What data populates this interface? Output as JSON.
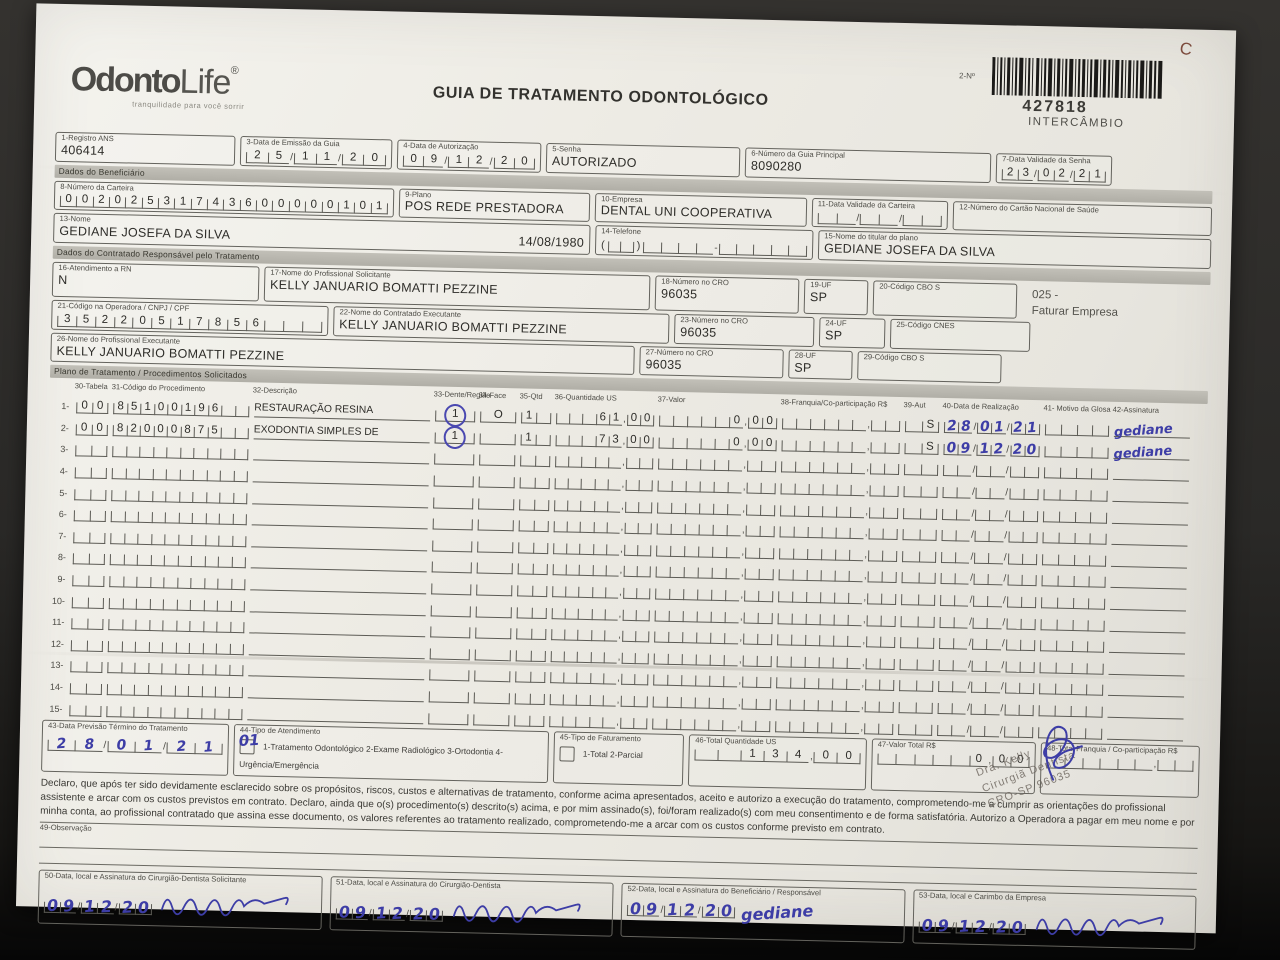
{
  "meta": {
    "corner_mark": "C"
  },
  "brand": {
    "name_bold": "Odonto",
    "name_light": "Life",
    "reg_mark": "®",
    "tagline": "tranquilidade para você sorrir"
  },
  "title": "GUIA DE TRATAMENTO ODONTOLÓGICO",
  "guide_number": {
    "label": "2-Nº",
    "number": "427818",
    "sub": "INTERCÂMBIO"
  },
  "top_fields": {
    "registro_ans": {
      "label": "1-Registro ANS",
      "value": "406414"
    },
    "data_emissao": {
      "label": "3-Data de Emissão da Guia",
      "value": "25/11/20"
    },
    "data_autorizacao": {
      "label": "4-Data de Autorização",
      "value": "09/12/20"
    },
    "senha": {
      "label": "5-Senha",
      "value": "AUTORIZADO"
    },
    "numero_guia_principal": {
      "label": "6-Número da Guia Principal",
      "value": "8090280"
    },
    "data_validade_senha": {
      "label": "7-Data Validade da Senha",
      "value": "23/02/21"
    }
  },
  "beneficiario": {
    "section_title": "Dados do Beneficiário",
    "numero_carteira": {
      "label": "8-Número da Carteira",
      "value": "00202531743600000101"
    },
    "plano": {
      "label": "9-Plano",
      "value": "POS REDE PRESTADORA"
    },
    "empresa": {
      "label": "10-Empresa",
      "value": "DENTAL UNI  COOPERATIVA"
    },
    "data_validade_carteira": {
      "label": "11-Data Validade da Carteira",
      "value": ""
    },
    "cartao_nacional_saude": {
      "label": "12-Número do Cartão Nacional de Saúde",
      "value": ""
    },
    "nome": {
      "label": "13-Nome",
      "value": "GEDIANE JOSEFA DA SILVA",
      "nascimento": "14/08/1980"
    },
    "telefone": {
      "label": "14-Telefone",
      "ddd": "",
      "numero": ""
    },
    "titular": {
      "label": "15-Nome do titular do plano",
      "value": "GEDIANE JOSEFA DA SILVA"
    }
  },
  "contratado": {
    "section_title": "Dados do Contratado Responsável pelo Tratamento",
    "atendimento_rn": {
      "label": "16-Atendimento a RN",
      "value": "N"
    },
    "prof_solicitante": {
      "label": "17-Nome do Profissional Solicitante",
      "value": "KELLY JANUARIO BOMATTI PEZZINE"
    },
    "cro_solicitante": {
      "label": "18-Número no CRO",
      "value": "96035"
    },
    "uf_solicitante": {
      "label": "19-UF",
      "value": "SP"
    },
    "cbo_solicitante": {
      "label": "20-Código CBO S",
      "value": ""
    },
    "faturar_codigo": "025 -",
    "faturar_texto": "Faturar Empresa",
    "codigo_operadora": {
      "label": "21-Código na Operadora / CNPJ / CPF",
      "value": "35220517856"
    },
    "contratado_executante": {
      "label": "22-Nome do Contratado Executante",
      "value": "KELLY JANUARIO BOMATTI PEZZINE"
    },
    "cro_executante": {
      "label": "23-Número no CRO",
      "value": "96035"
    },
    "uf_executante": {
      "label": "24-UF",
      "value": "SP"
    },
    "cnes": {
      "label": "25-Código CNES",
      "value": ""
    },
    "prof_executante": {
      "label": "26-Nome do Profissional Executante",
      "value": "KELLY JANUARIO BOMATTI PEZZINE"
    },
    "cro_prof_executante": {
      "label": "27-Número no CRO",
      "value": "96035"
    },
    "uf_prof_executante": {
      "label": "28-UF",
      "value": "SP"
    },
    "cbo_executante": {
      "label": "29-Código CBO S",
      "value": ""
    }
  },
  "procedimentos": {
    "section_title": "Plano de Tratamento / Procedimentos Solicitados",
    "headers": {
      "tabela": "30-Tabela",
      "codigo": "31-Código do Procedimento",
      "descricao": "32-Descrição",
      "dente": "33-Dente/Região",
      "face": "34-Face",
      "qtd": "35-Qtd",
      "qus": "36-Quantidade US",
      "valor": "37-Valor",
      "franquia": "38-Franquia/Co-participação R$",
      "aut": "39-Aut",
      "data": "40-Data de Realização",
      "glosa_assinatura": "41- Motivo da Glosa 42-Assinatura"
    },
    "rows": [
      {
        "n": "1",
        "tabela": "00",
        "codigo": "85100196",
        "descricao": "RESTAURAÇÃO RESINA",
        "dente": "17",
        "dente_circulado": true,
        "face": "O",
        "qtd": "1",
        "quantidade_us": "61,00",
        "valor": "0,00",
        "franquia": "",
        "aut": "S",
        "data_realizacao": "28/01/21",
        "assinatura": "gediane"
      },
      {
        "n": "2",
        "tabela": "00",
        "codigo": "82000875",
        "descricao": "EXODONTIA SIMPLES DE",
        "dente": "16",
        "dente_circulado": true,
        "face": "",
        "qtd": "1",
        "quantidade_us": "73,00",
        "valor": "0,00",
        "franquia": "",
        "aut": "S",
        "data_realizacao": "09/12/20",
        "assinatura": "gediane"
      },
      {
        "n": "3"
      },
      {
        "n": "4"
      },
      {
        "n": "5"
      },
      {
        "n": "6"
      },
      {
        "n": "7"
      },
      {
        "n": "8"
      },
      {
        "n": "9"
      },
      {
        "n": "10"
      },
      {
        "n": "11"
      },
      {
        "n": "12"
      },
      {
        "n": "13"
      },
      {
        "n": "14"
      },
      {
        "n": "15"
      }
    ]
  },
  "rodape": {
    "data_previsao": {
      "label": "43-Data Previsão Término do Tratamento",
      "value": "28/01/21"
    },
    "tipo_atendimento": {
      "label": "44-Tipo de Atendimento",
      "marca": "01",
      "options": "1-Tratamento Odontológico  2-Exame Radiológico  3-Ortodontia  4-Urgência/Emergência"
    },
    "tipo_faturamento": {
      "label": "45-Tipo de Faturamento",
      "options": "1-Total  2-Parcial"
    },
    "total_quantidade_us": {
      "label": "46-Total Quantidade US",
      "value": "134,00"
    },
    "valor_total": {
      "label": "47-Valor Total R$",
      "value": "0,00"
    },
    "total_franquia": {
      "label": "48-Total Franquia / Co-participação R$",
      "value": ""
    }
  },
  "declaracao": "Declaro, que após ter sido devidamente esclarecido sobre os propósitos, riscos, custos e alternativas de tratamento, conforme acima apresentados, aceito e autorizo a execução do tratamento, comprometendo-me a cumprir as orientações do profissional assistente e arcar com os custos previstos em contrato. Declaro, ainda que o(s) procedimento(s) descrito(s) acima, e por mim assinado(s), foi/foram realizado(s) com meu consentimento e de forma satisfatória. Autorizo a Operadora a pagar em meu nome e por minha conta, ao profissional contratado que assina esse documento, os valores referentes ao tratamento realizado, comprometendo-me a arcar com os custos conforme previsto em contrato.",
  "observacao": {
    "label": "49-Observação",
    "value": ""
  },
  "carimbo": {
    "linha1": "Dra. Kelly",
    "linha2": "Cirurgiã Dentista",
    "linha3": "CRO-SP 96035"
  },
  "assinaturas": [
    {
      "label": "50-Data, local e Assinatura do Cirurgião-Dentista Solicitante",
      "data": "09/12/20",
      "assinatura": "kelly"
    },
    {
      "label": "51-Data, local e Assinatura do Cirurgião-Dentista",
      "data": "09/12/20",
      "assinatura": "kelly"
    },
    {
      "label": "52-Data, local e Assinatura do Beneficiário / Responsável",
      "data": "09/12/20",
      "assinatura": "gediane"
    },
    {
      "label": "53-Data, local e Carimbo da Empresa",
      "data": "09/12/20",
      "assinatura": "kelly"
    }
  ]
}
